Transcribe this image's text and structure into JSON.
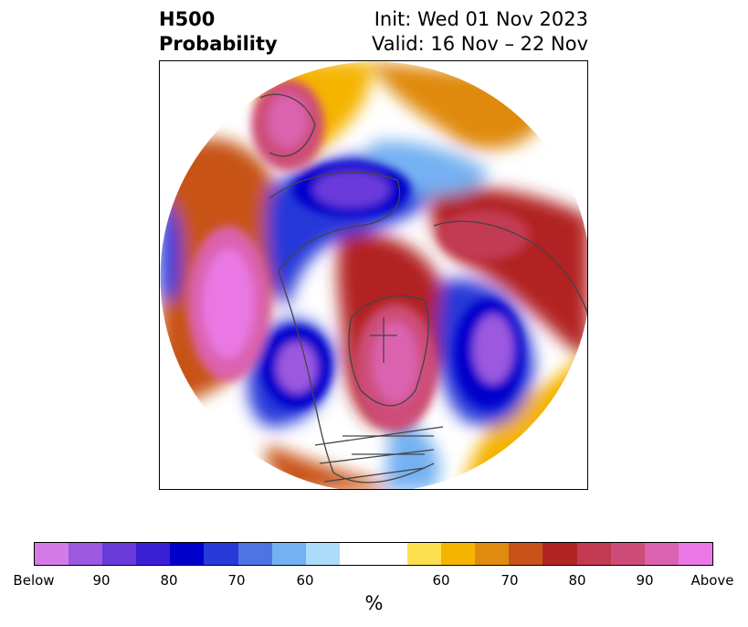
{
  "header": {
    "title_line1": "H500",
    "title_line2": "Probability",
    "init_text": "Init: Wed 01 Nov 2023",
    "valid_text": "Valid: 16 Nov – 22 Nov"
  },
  "map": {
    "projection": "north-polar-stereographic",
    "features": [
      "coastlines",
      "country-borders",
      "state-borders"
    ]
  },
  "colorbar": {
    "unit_label": "%",
    "below_colors": [
      "#d57be8",
      "#9c58e0",
      "#6a3ada",
      "#3a1fd6",
      "#0000cc",
      "#2639d9",
      "#4e73e3",
      "#74b1f2",
      "#acdcf9"
    ],
    "neutral_color": "#ffffff",
    "above_colors": [
      "#fde04f",
      "#f5b400",
      "#e08a10",
      "#c85219",
      "#b22424",
      "#c23a52",
      "#cd4d78",
      "#db62af",
      "#e978e4"
    ],
    "tick_labels": [
      "Below",
      "90",
      "80",
      "70",
      "60",
      "60",
      "70",
      "80",
      "90",
      "Above"
    ]
  }
}
